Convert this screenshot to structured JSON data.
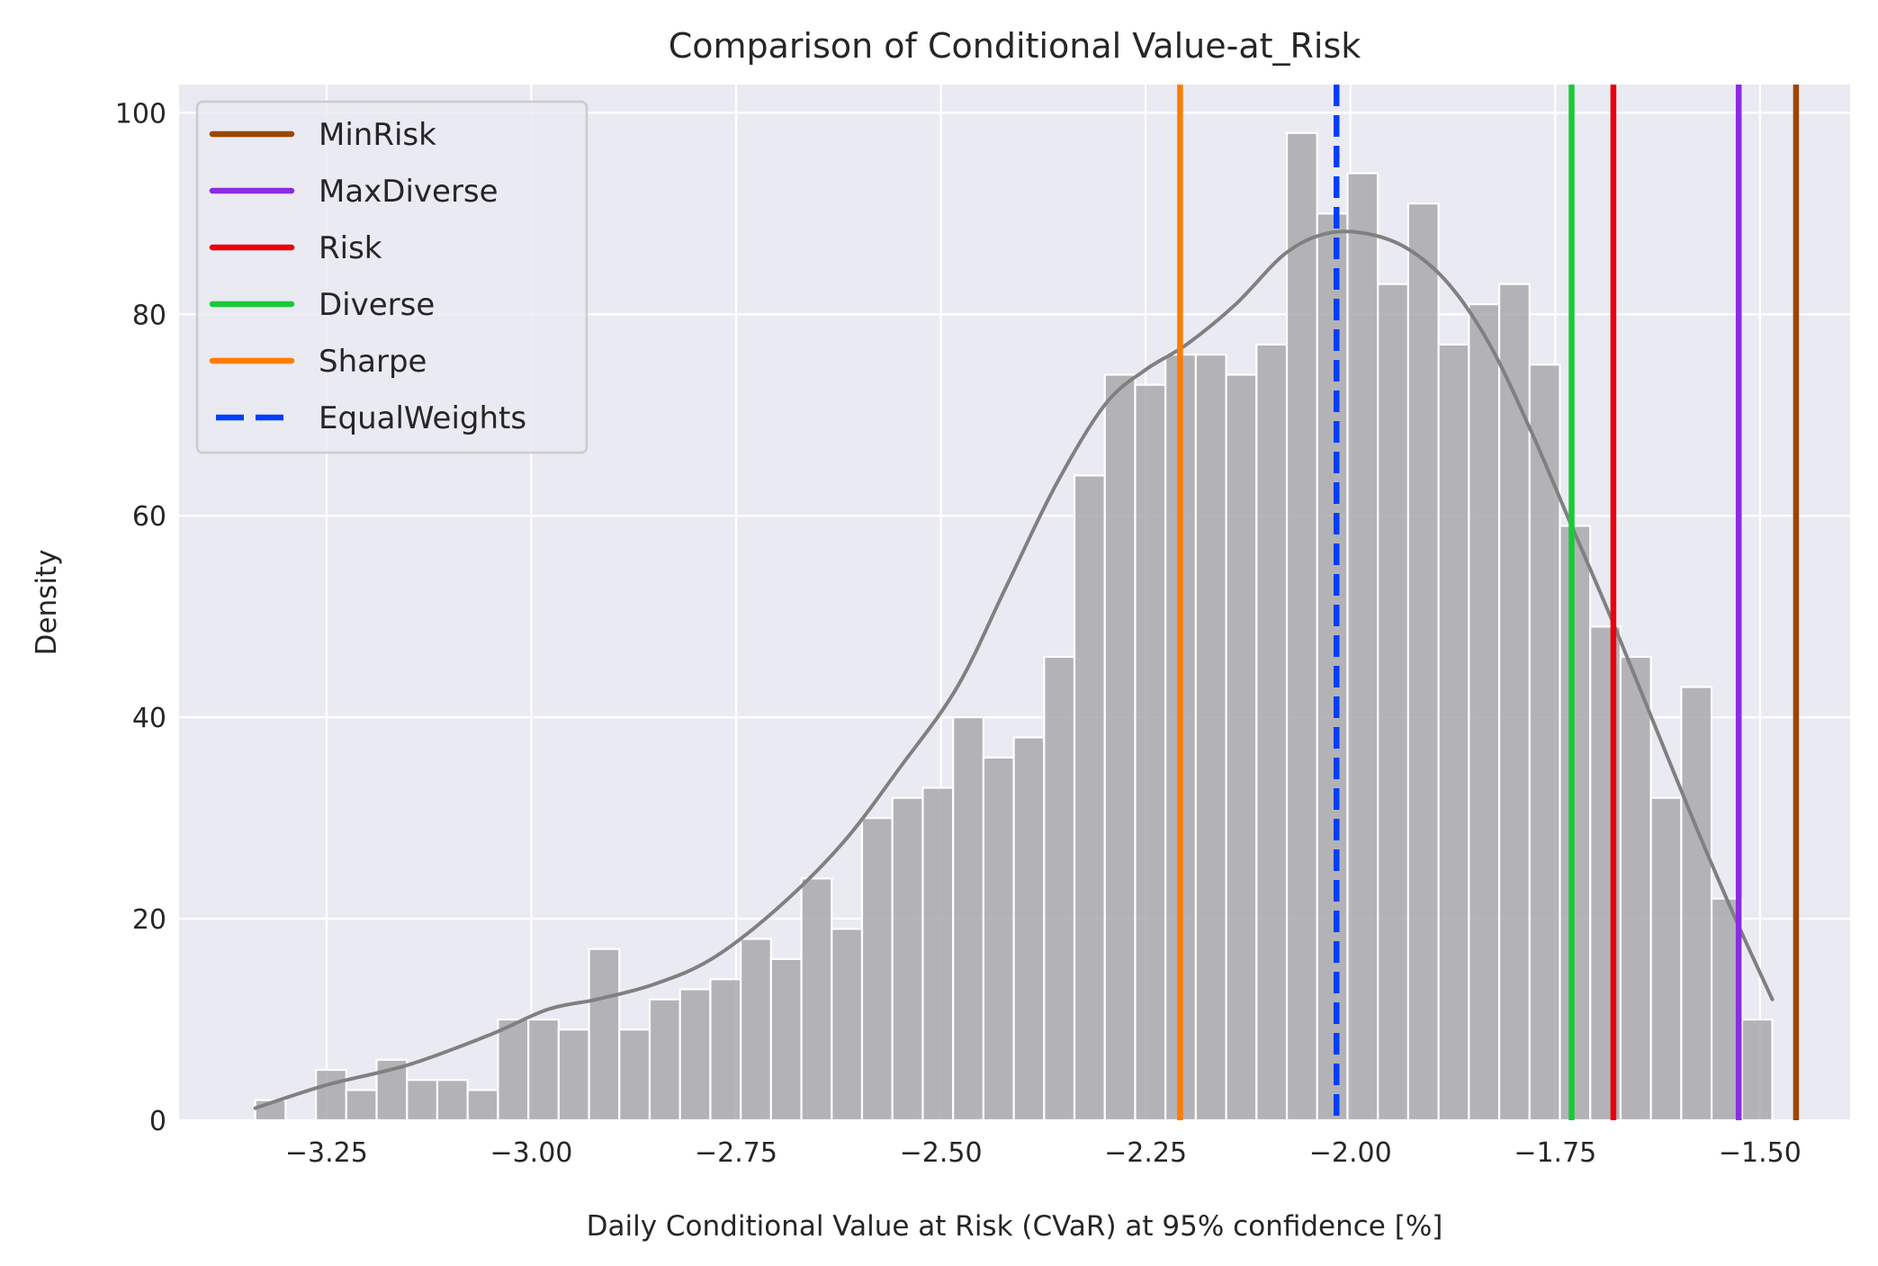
{
  "chart_data": {
    "type": "bar",
    "subtype": "histogram-with-kde",
    "title": "Comparison of Conditional Value-at_Risk",
    "xlabel": "Daily Conditional Value at Risk (CVaR) at 95% confidence [%]",
    "ylabel": "Density",
    "xlim": [
      -3.43,
      -1.39
    ],
    "ylim": [
      0,
      102.8
    ],
    "xticks": [
      -3.25,
      -3.0,
      -2.75,
      -2.5,
      -2.25,
      -2.0,
      -1.75,
      -1.5
    ],
    "xtick_labels": [
      "−3.25",
      "−3.00",
      "−2.75",
      "−2.50",
      "−2.25",
      "−2.00",
      "−1.75",
      "−1.50"
    ],
    "yticks": [
      0,
      20,
      40,
      60,
      80,
      100
    ],
    "ytick_labels": [
      "0",
      "20",
      "40",
      "60",
      "80",
      "100"
    ],
    "grid": true,
    "background": "#eaeaf2",
    "histogram": {
      "bin_start": -3.337,
      "bin_width": 0.03704,
      "color": "#a9a9ad",
      "counts": [
        2,
        0,
        5,
        3,
        6,
        4,
        4,
        3,
        10,
        10,
        9,
        17,
        9,
        12,
        13,
        14,
        18,
        16,
        24,
        19,
        30,
        32,
        33,
        40,
        36,
        38,
        46,
        64,
        74,
        73,
        76,
        76,
        74,
        77,
        98,
        90,
        94,
        83,
        91,
        77,
        81,
        83,
        75,
        59,
        49,
        46,
        32,
        43,
        22,
        10
      ]
    },
    "kde": {
      "color": "#808080",
      "x": [
        -3.337,
        -3.25,
        -3.15,
        -3.05,
        -2.98,
        -2.92,
        -2.85,
        -2.78,
        -2.7,
        -2.62,
        -2.55,
        -2.48,
        -2.42,
        -2.36,
        -2.3,
        -2.25,
        -2.2,
        -2.14,
        -2.08,
        -2.03,
        -1.98,
        -1.93,
        -1.88,
        -1.83,
        -1.78,
        -1.73,
        -1.68,
        -1.63,
        -1.58,
        -1.53,
        -1.485
      ],
      "y": [
        1.2,
        3.5,
        5.5,
        8.5,
        11,
        12,
        13.5,
        16,
        21,
        27.5,
        35,
        43,
        53,
        63,
        71,
        74.5,
        77,
        81,
        86,
        88,
        88,
        86.5,
        83,
        77,
        68.5,
        59,
        49.5,
        39.5,
        29.5,
        20,
        12
      ]
    },
    "legend_position": "top-left",
    "series": [
      {
        "name": "MinRisk",
        "type": "vline",
        "x": -1.456,
        "color": "#9c4600",
        "style": "solid"
      },
      {
        "name": "MaxDiverse",
        "type": "vline",
        "x": -1.526,
        "color": "#8b2be2",
        "style": "solid"
      },
      {
        "name": "Risk",
        "type": "vline",
        "x": -1.679,
        "color": "#e8000b",
        "style": "solid"
      },
      {
        "name": "Diverse",
        "type": "vline",
        "x": -1.73,
        "color": "#1ac938",
        "style": "solid"
      },
      {
        "name": "Sharpe",
        "type": "vline",
        "x": -2.208,
        "color": "#ff7c00",
        "style": "solid"
      },
      {
        "name": "EqualWeights",
        "type": "vline",
        "x": -2.017,
        "color": "#023eff",
        "style": "dashed"
      }
    ]
  }
}
